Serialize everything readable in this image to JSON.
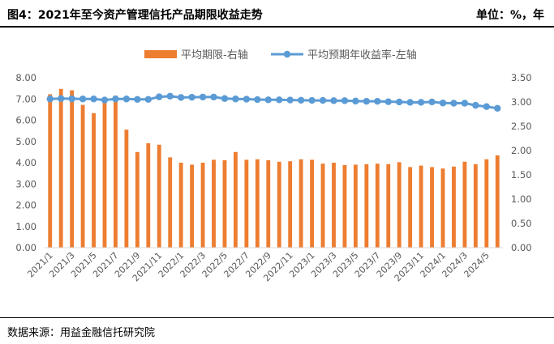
{
  "header": {
    "title": "图4：2021年至今资产管理信托产品期限收益走势",
    "unit": "单位：%，年"
  },
  "footer": {
    "source": "数据来源：用益金融信托研究院"
  },
  "colors": {
    "bar": "#ED7D31",
    "line": "#5B9BD5",
    "axis": "#D9D9D9",
    "text": "#595959"
  },
  "chart_data": {
    "type": "bar+line",
    "legend_position": "top-center",
    "grid": false,
    "x": [
      "2021/1",
      "2021/2",
      "2021/3",
      "2021/4",
      "2021/5",
      "2021/6",
      "2021/7",
      "2021/8",
      "2021/9",
      "2021/10",
      "2021/11",
      "2021/12",
      "2022/1",
      "2022/2",
      "2022/3",
      "2022/4",
      "2022/5",
      "2022/6",
      "2022/7",
      "2022/8",
      "2022/9",
      "2022/10",
      "2022/11",
      "2022/12",
      "2023/1",
      "2023/2",
      "2023/3",
      "2023/4",
      "2023/5",
      "2023/6",
      "2023/7",
      "2023/8",
      "2023/9",
      "2023/10",
      "2023/11",
      "2023/12",
      "2024/1",
      "2024/2",
      "2024/3",
      "2024/4",
      "2024/5",
      "2024/6"
    ],
    "x_tick_labels": [
      "2021/1",
      "2021/3",
      "2021/5",
      "2021/7",
      "2021/9",
      "2021/11",
      "2022/1",
      "2022/3",
      "2022/5",
      "2022/7",
      "2022/9",
      "2022/11",
      "2023/1",
      "2023/3",
      "2023/5",
      "2023/7",
      "2023/9",
      "2023/11",
      "2024/1",
      "2024/3",
      "2024/5"
    ],
    "y_left": {
      "ticks": [
        "0.00",
        "1.00",
        "2.00",
        "3.00",
        "4.00",
        "5.00",
        "6.00",
        "7.00",
        "8.00"
      ],
      "lim": [
        0,
        8
      ]
    },
    "y_right": {
      "ticks": [
        "0.00",
        "0.50",
        "1.00",
        "1.50",
        "2.00",
        "2.50",
        "3.00",
        "3.50"
      ],
      "lim": [
        0,
        3.5
      ]
    },
    "series": [
      {
        "name": "平均期限-右轴",
        "type": "bar",
        "axis": "right",
        "values": [
          3.16,
          3.27,
          3.24,
          2.94,
          2.77,
          3.05,
          3.13,
          2.43,
          1.97,
          2.15,
          2.12,
          1.86,
          1.75,
          1.71,
          1.75,
          1.81,
          1.8,
          1.97,
          1.81,
          1.82,
          1.8,
          1.77,
          1.78,
          1.82,
          1.81,
          1.73,
          1.75,
          1.7,
          1.71,
          1.72,
          1.73,
          1.72,
          1.76,
          1.66,
          1.69,
          1.66,
          1.63,
          1.67,
          1.77,
          1.72,
          1.82,
          1.9
        ]
      },
      {
        "name": "平均预期年收益率-左轴",
        "type": "line",
        "axis": "left",
        "values": [
          7.0,
          7.02,
          7.01,
          7.0,
          7.0,
          6.95,
          7.0,
          7.0,
          6.98,
          6.98,
          7.1,
          7.13,
          7.07,
          7.08,
          7.09,
          7.09,
          7.02,
          7.0,
          6.99,
          6.97,
          6.96,
          6.96,
          6.95,
          6.94,
          6.93,
          6.93,
          6.92,
          6.92,
          6.9,
          6.89,
          6.89,
          6.87,
          6.86,
          6.84,
          6.84,
          6.86,
          6.81,
          6.8,
          6.8,
          6.7,
          6.64,
          6.56
        ]
      }
    ]
  }
}
